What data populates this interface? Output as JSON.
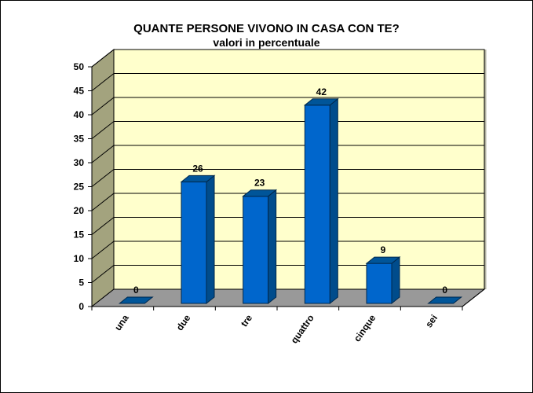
{
  "chart_data": {
    "type": "bar",
    "title": "QUANTE PERSONE VIVONO IN CASA CON TE?",
    "subtitle": "valori in percentuale",
    "xlabel": "",
    "ylabel": "",
    "categories": [
      "una",
      "due",
      "tre",
      "quattro",
      "cinque",
      "sei"
    ],
    "values": [
      0,
      26,
      23,
      42,
      9,
      0
    ],
    "data_labels": [
      "0",
      "26",
      "23",
      "42",
      "9",
      "0"
    ],
    "ylim": [
      0,
      50
    ],
    "yticks": [
      "0",
      "5",
      "10",
      "15",
      "20",
      "25",
      "30",
      "35",
      "40",
      "45",
      "50"
    ],
    "grid": true,
    "legend": "none",
    "style": "3d",
    "colors": {
      "bar_front": "#0066CC",
      "bar_side": "#004C8C",
      "bar_top": "#005599",
      "back_wall": "#FFFFCC",
      "side_wall": "#A3A37E",
      "floor": "#999999"
    }
  }
}
